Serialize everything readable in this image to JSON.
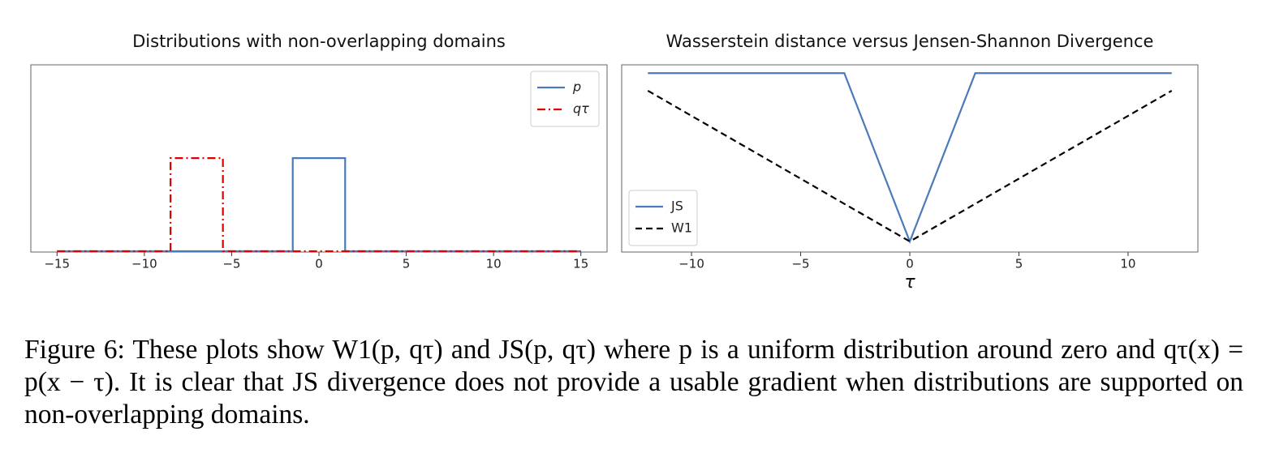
{
  "chart_data": [
    {
      "type": "line",
      "title": "Distributions with non-overlapping domains",
      "xlim": [
        -16.5,
        16.5
      ],
      "ylim": [
        -0.003,
        0.667
      ],
      "xticks": [
        {
          "value": -15,
          "label": "−15"
        },
        {
          "value": -10,
          "label": "−10"
        },
        {
          "value": -5,
          "label": "−5"
        },
        0,
        5,
        10,
        15
      ],
      "legend": "upper right",
      "series": [
        {
          "name": "p",
          "color": "#4a7ab8",
          "linestyle": "solid",
          "x": [
            -15,
            -1.5,
            -1.5,
            1.5,
            1.5,
            15
          ],
          "values": [
            0,
            0,
            0.333,
            0.333,
            0,
            0
          ]
        },
        {
          "name": "qτ",
          "color": "#e00000",
          "linestyle": "dashdot",
          "x": [
            -15,
            -8.5,
            -8.5,
            -5.5,
            -5.5,
            15
          ],
          "values": [
            0,
            0,
            0.333,
            0.333,
            0,
            0
          ]
        }
      ]
    },
    {
      "type": "line",
      "title": "Wasserstein distance versus Jensen-Shannon Divergence",
      "x_label": "τ",
      "xlim": [
        -13.2,
        13.2
      ],
      "ylim": [
        -0.84,
        14.06
      ],
      "xticks": [
        {
          "value": -10,
          "label": "−10"
        },
        {
          "value": -5,
          "label": "−5"
        },
        0,
        5,
        10
      ],
      "legend": "lower left",
      "series": [
        {
          "name": "JS",
          "color": "#4a7ab8",
          "linestyle": "solid",
          "x": [
            -12,
            -3,
            0,
            3,
            12
          ],
          "values": [
            13.4,
            13.4,
            0,
            13.4,
            13.4
          ]
        },
        {
          "name": "W1",
          "color": "#000000",
          "linestyle": "dashed",
          "x": [
            -12,
            0,
            12
          ],
          "values": [
            12,
            0,
            12
          ]
        }
      ]
    }
  ],
  "caption": "Figure 6: These plots show W1(p, qτ) and JS(p, qτ) where p is a uniform distribution around zero and qτ(x) = p(x − τ). It is clear that JS divergence does not provide a usable gradient when distributions are supported on non-overlapping domains."
}
